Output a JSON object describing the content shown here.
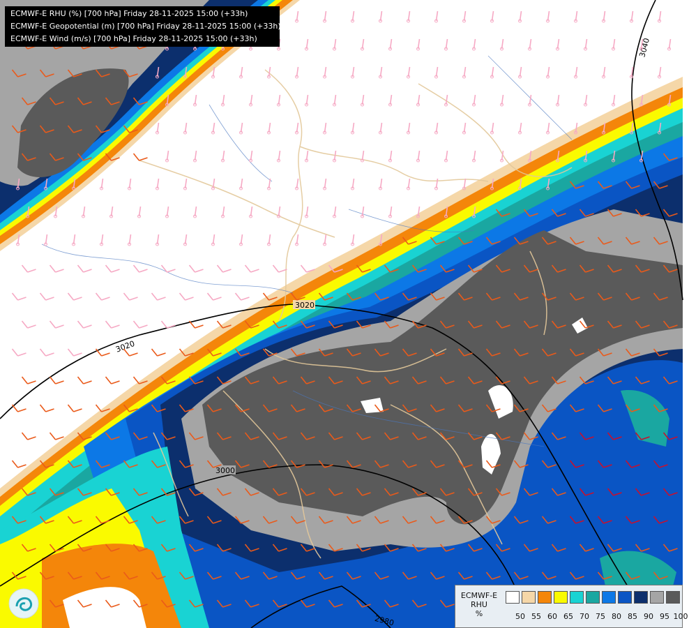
{
  "map": {
    "titles": [
      "ECMWF-E RHU (%) [700 hPa] Friday 28-11-2025 15:00 (+33h)",
      "ECMWF-E Geopotential (m) [700 hPa] Friday 28-11-2025 15:00 (+33h)",
      "ECMWF-E Wind (m/s) [700 hPa] Friday 28-11-2025 15:00 (+33h)"
    ],
    "contour_labels": [
      "3040",
      "3020",
      "3020",
      "3000",
      "2980"
    ],
    "colors": {
      "c50": "#ffffff",
      "c55": "#f5d7a8",
      "c60": "#f4860a",
      "c65": "#fafa00",
      "c70": "#19d3d3",
      "c75": "#1aa7a1",
      "c80": "#0c78e6",
      "c85": "#0a55c4",
      "c90": "#0c2f6d",
      "c95": "#a5a5a5",
      "c100": "#5a5a5a"
    }
  },
  "legend": {
    "title_line1": "ECMWF-E",
    "title_line2": "RHU",
    "title_line3": "%",
    "swatches": [
      "#ffffff",
      "#f5d7a8",
      "#f4860a",
      "#fafa00",
      "#19d3d3",
      "#1aa7a1",
      "#0c78e6",
      "#0a55c4",
      "#0c2f6d",
      "#a5a5a5",
      "#5a5a5a"
    ],
    "ticks": [
      "50",
      "55",
      "60",
      "65",
      "70",
      "75",
      "80",
      "85",
      "90",
      "95",
      "100"
    ]
  }
}
